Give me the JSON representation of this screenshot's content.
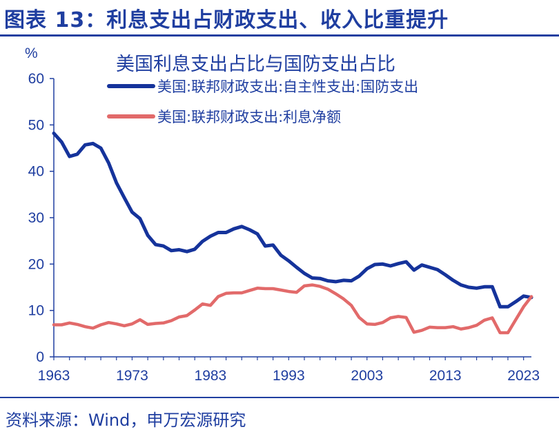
{
  "header": {
    "title": "图表 13：利息支出占财政支出、收入比重提升"
  },
  "footer": {
    "source": "资料来源：Wind，申万宏源研究"
  },
  "chart_data": {
    "type": "line",
    "title": "美国利息支出占比与国防支出占比",
    "ylabel": "%",
    "xlabel": "",
    "ylim": [
      0,
      60
    ],
    "xlim": [
      1963,
      2024
    ],
    "y_ticks": [
      "0",
      "10",
      "20",
      "30",
      "40",
      "50",
      "60"
    ],
    "x_ticks": [
      "1963",
      "1973",
      "1983",
      "1993",
      "2003",
      "2013",
      "2023"
    ],
    "grid": false,
    "legend_position": "top-right",
    "series": [
      {
        "name": "美国:联邦财政支出:自主性支出:国防支出",
        "color": "#15339b",
        "x": [
          1963,
          1964,
          1965,
          1966,
          1967,
          1968,
          1969,
          1970,
          1971,
          1972,
          1973,
          1974,
          1975,
          1976,
          1977,
          1978,
          1979,
          1980,
          1981,
          1982,
          1983,
          1984,
          1985,
          1986,
          1987,
          1988,
          1989,
          1990,
          1991,
          1992,
          1993,
          1994,
          1995,
          1996,
          1997,
          1998,
          1999,
          2000,
          2001,
          2002,
          2003,
          2004,
          2005,
          2006,
          2007,
          2008,
          2009,
          2010,
          2011,
          2012,
          2013,
          2014,
          2015,
          2016,
          2017,
          2018,
          2019,
          2020,
          2021,
          2022,
          2023,
          2024
        ],
        "values": [
          48.2,
          46.3,
          43.2,
          43.7,
          45.7,
          46.0,
          45.0,
          41.8,
          37.5,
          34.3,
          31.2,
          29.8,
          26.2,
          24.2,
          23.9,
          22.9,
          23.1,
          22.7,
          23.2,
          24.9,
          26.0,
          26.8,
          26.8,
          27.6,
          28.1,
          27.4,
          26.5,
          23.9,
          24.1,
          21.9,
          20.7,
          19.3,
          18.0,
          17.0,
          16.9,
          16.4,
          16.2,
          16.5,
          16.4,
          17.4,
          19.0,
          19.9,
          20.0,
          19.6,
          20.1,
          20.5,
          18.7,
          19.8,
          19.3,
          18.8,
          17.7,
          16.5,
          15.5,
          15.0,
          14.8,
          15.1,
          15.1,
          10.8,
          10.8,
          11.9,
          13.1,
          12.8
        ]
      },
      {
        "name": "美国:联邦财政支出:利息净额",
        "color": "#e26a6a",
        "x": [
          1963,
          1964,
          1965,
          1966,
          1967,
          1968,
          1969,
          1970,
          1971,
          1972,
          1973,
          1974,
          1975,
          1976,
          1977,
          1978,
          1979,
          1980,
          1981,
          1982,
          1983,
          1984,
          1985,
          1986,
          1987,
          1988,
          1989,
          1990,
          1991,
          1992,
          1993,
          1994,
          1995,
          1996,
          1997,
          1998,
          1999,
          2000,
          2001,
          2002,
          2003,
          2004,
          2005,
          2006,
          2007,
          2008,
          2009,
          2010,
          2011,
          2012,
          2013,
          2014,
          2015,
          2016,
          2017,
          2018,
          2019,
          2020,
          2021,
          2022,
          2023,
          2024
        ],
        "values": [
          6.9,
          6.9,
          7.3,
          7.0,
          6.5,
          6.2,
          6.9,
          7.4,
          7.1,
          6.7,
          7.1,
          8.0,
          7.0,
          7.2,
          7.3,
          7.8,
          8.6,
          8.9,
          10.1,
          11.4,
          11.1,
          13.0,
          13.7,
          13.8,
          13.8,
          14.3,
          14.8,
          14.7,
          14.7,
          14.4,
          14.1,
          13.9,
          15.3,
          15.5,
          15.2,
          14.6,
          13.6,
          12.5,
          11.1,
          8.5,
          7.1,
          7.0,
          7.4,
          8.4,
          8.7,
          8.5,
          5.3,
          5.7,
          6.4,
          6.3,
          6.3,
          6.5,
          6.0,
          6.3,
          6.8,
          7.9,
          8.4,
          5.2,
          5.2,
          8.0,
          10.8,
          13.0
        ]
      }
    ]
  }
}
